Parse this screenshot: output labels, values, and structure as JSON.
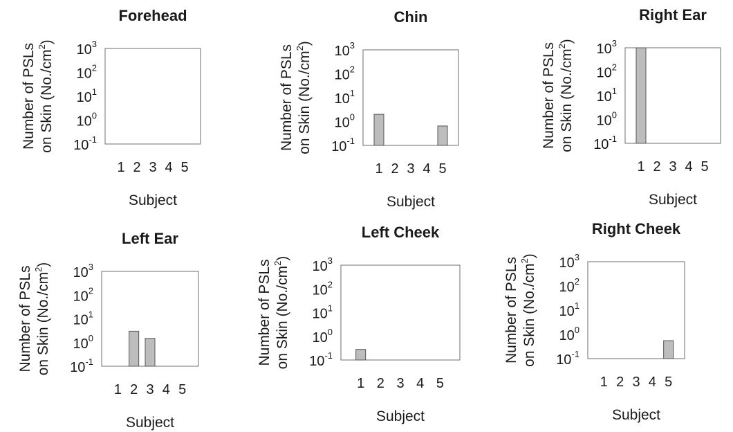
{
  "chart_data": [
    {
      "type": "bar",
      "title": "Forehead",
      "categories": [
        "1",
        "2",
        "3",
        "4",
        "5"
      ],
      "values": [
        null,
        null,
        null,
        null,
        null
      ],
      "ylabel": [
        "Number of PSLs",
        "on Skin (No./cm",
        "2",
        ")"
      ],
      "xlabel": "Subject",
      "yscale": "log",
      "ylim": [
        0.1,
        1000
      ],
      "yticks": [
        {
          "base": "10",
          "exp": "3"
        },
        {
          "base": "10",
          "exp": "2"
        },
        {
          "base": "10",
          "exp": "1"
        },
        {
          "base": "10",
          "exp": "0"
        },
        {
          "base": "10",
          "exp": "-1"
        }
      ],
      "bar_color": "#bdbdbd"
    },
    {
      "type": "bar",
      "title": "Chin",
      "categories": [
        "1",
        "2",
        "3",
        "4",
        "5"
      ],
      "values": [
        2,
        null,
        null,
        null,
        0.65
      ],
      "ylabel": [
        "Number of PSLs",
        "on Skin (No./cm",
        "2",
        ")"
      ],
      "xlabel": "Subject",
      "yscale": "log",
      "ylim": [
        0.1,
        1000
      ],
      "yticks": [
        {
          "base": "10",
          "exp": "3"
        },
        {
          "base": "10",
          "exp": "2"
        },
        {
          "base": "10",
          "exp": "1"
        },
        {
          "base": "10",
          "exp": "0"
        },
        {
          "base": "10",
          "exp": "-1"
        }
      ],
      "bar_color": "#bdbdbd"
    },
    {
      "type": "bar",
      "title": "Right Ear",
      "categories": [
        "1",
        "2",
        "3",
        "4",
        "5"
      ],
      "values": [
        1000,
        null,
        null,
        null,
        null
      ],
      "ylabel": [
        "Number of PSLs",
        "on Skin (No./cm",
        "2",
        ")"
      ],
      "xlabel": "Subject",
      "yscale": "log",
      "ylim": [
        0.1,
        1000
      ],
      "yticks": [
        {
          "base": "10",
          "exp": "3"
        },
        {
          "base": "10",
          "exp": "2"
        },
        {
          "base": "10",
          "exp": "1"
        },
        {
          "base": "10",
          "exp": "0"
        },
        {
          "base": "10",
          "exp": "-1"
        }
      ],
      "bar_color": "#bdbdbd"
    },
    {
      "type": "bar",
      "title": "Left Ear",
      "categories": [
        "1",
        "2",
        "3",
        "4",
        "5"
      ],
      "values": [
        null,
        3,
        1.5,
        null,
        null
      ],
      "ylabel": [
        "Number of PSLs",
        "on Skin (No./cm",
        "2",
        ")"
      ],
      "xlabel": "Subject",
      "yscale": "log",
      "ylim": [
        0.1,
        1000
      ],
      "yticks": [
        {
          "base": "10",
          "exp": "3"
        },
        {
          "base": "10",
          "exp": "2"
        },
        {
          "base": "10",
          "exp": "1"
        },
        {
          "base": "10",
          "exp": "0"
        },
        {
          "base": "10",
          "exp": "-1"
        }
      ],
      "bar_color": "#bdbdbd"
    },
    {
      "type": "bar",
      "title": "Left Cheek",
      "categories": [
        "1",
        "2",
        "3",
        "4",
        "5"
      ],
      "values": [
        0.28,
        null,
        null,
        null,
        null
      ],
      "ylabel": [
        "Number of PSLs",
        "on Skin (No./cm",
        "2",
        ")"
      ],
      "xlabel": "Subject",
      "yscale": "log",
      "ylim": [
        0.1,
        1000
      ],
      "yticks": [
        {
          "base": "10",
          "exp": "3"
        },
        {
          "base": "10",
          "exp": "2"
        },
        {
          "base": "10",
          "exp": "1"
        },
        {
          "base": "10",
          "exp": "0"
        },
        {
          "base": "10",
          "exp": "-1"
        }
      ],
      "bar_color": "#bdbdbd"
    },
    {
      "type": "bar",
      "title": "Right Cheek",
      "categories": [
        "1",
        "2",
        "3",
        "4",
        "5"
      ],
      "values": [
        null,
        null,
        null,
        null,
        0.55
      ],
      "ylabel": [
        "Number of PSLs",
        "on Skin (No./cm",
        "2",
        ")"
      ],
      "xlabel": "Subject",
      "yscale": "log",
      "ylim": [
        0.1,
        1000
      ],
      "yticks": [
        {
          "base": "10",
          "exp": "3"
        },
        {
          "base": "10",
          "exp": "2"
        },
        {
          "base": "10",
          "exp": "1"
        },
        {
          "base": "10",
          "exp": "0"
        },
        {
          "base": "10",
          "exp": "-1"
        }
      ],
      "bar_color": "#bdbdbd"
    }
  ]
}
